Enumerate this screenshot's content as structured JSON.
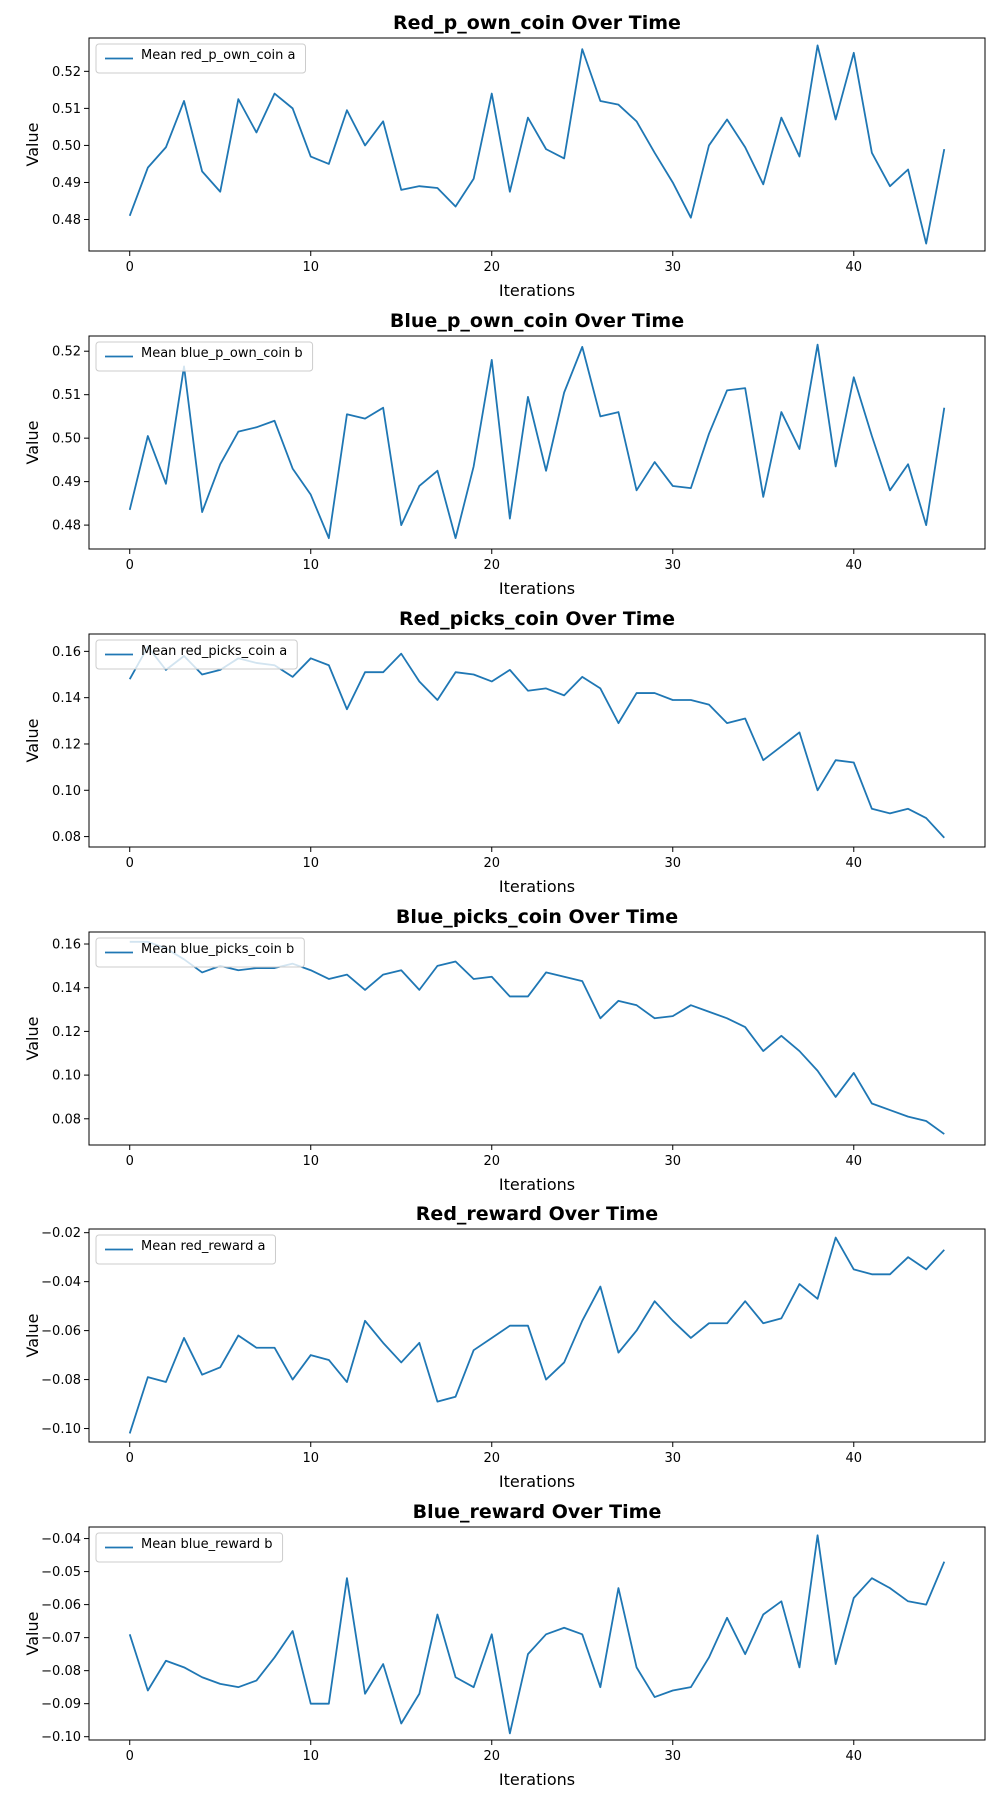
{
  "chart_data": [
    {
      "type": "line",
      "title": "Red_p_own_coin Over Time",
      "xlabel": "Iterations",
      "ylabel": "Value",
      "xlim": [
        -2.25,
        47.25
      ],
      "ylim": [
        0.4715,
        0.529
      ],
      "xticks": [
        0,
        10,
        20,
        30,
        40
      ],
      "xtick_labels": [
        "0",
        "10",
        "20",
        "30",
        "40"
      ],
      "yticks": [
        0.48,
        0.49,
        0.5,
        0.51,
        0.52
      ],
      "ytick_labels": [
        "0.48",
        "0.49",
        "0.50",
        "0.51",
        "0.52"
      ],
      "color": "#1f77b4",
      "legend_position": "upper left",
      "series": [
        {
          "name": "Mean red_p_own_coin a",
          "values": [
            0.481,
            0.494,
            0.4995,
            0.512,
            0.493,
            0.4875,
            0.5125,
            0.5035,
            0.514,
            0.51,
            0.497,
            0.495,
            0.5095,
            0.5,
            0.5065,
            0.488,
            0.489,
            0.4885,
            0.4835,
            0.491,
            0.514,
            0.4875,
            0.5075,
            0.499,
            0.4965,
            0.526,
            0.512,
            0.511,
            0.5065,
            0.498,
            0.49,
            0.4805,
            0.5,
            0.507,
            0.4995,
            0.4895,
            0.5075,
            0.497,
            0.527,
            0.507,
            0.525,
            0.498,
            0.489,
            0.4935,
            0.4735,
            0.499
          ]
        }
      ]
    },
    {
      "type": "line",
      "title": "Blue_p_own_coin Over Time",
      "xlabel": "Iterations",
      "ylabel": "Value",
      "xlim": [
        -2.25,
        47.25
      ],
      "ylim": [
        0.4745,
        0.5235
      ],
      "xticks": [
        0,
        10,
        20,
        30,
        40
      ],
      "xtick_labels": [
        "0",
        "10",
        "20",
        "30",
        "40"
      ],
      "yticks": [
        0.48,
        0.49,
        0.5,
        0.51,
        0.52
      ],
      "ytick_labels": [
        "0.48",
        "0.49",
        "0.50",
        "0.51",
        "0.52"
      ],
      "color": "#1f77b4",
      "legend_position": "upper left",
      "series": [
        {
          "name": "Mean blue_p_own_coin b",
          "values": [
            0.4835,
            0.5005,
            0.4895,
            0.5165,
            0.483,
            0.494,
            0.5015,
            0.5025,
            0.504,
            0.493,
            0.487,
            0.477,
            0.5055,
            0.5045,
            0.507,
            0.48,
            0.489,
            0.4925,
            0.477,
            0.4935,
            0.518,
            0.4815,
            0.5095,
            0.4925,
            0.5105,
            0.521,
            0.505,
            0.506,
            0.488,
            0.4945,
            0.489,
            0.4885,
            0.501,
            0.511,
            0.5115,
            0.4865,
            0.506,
            0.4975,
            0.5215,
            0.4935,
            0.514,
            0.5005,
            0.488,
            0.494,
            0.48,
            0.507
          ]
        }
      ]
    },
    {
      "type": "line",
      "title": "Red_picks_coin Over Time",
      "xlabel": "Iterations",
      "ylabel": "Value",
      "xlim": [
        -2.25,
        47.25
      ],
      "ylim": [
        0.0755,
        0.1675
      ],
      "xticks": [
        0,
        10,
        20,
        30,
        40
      ],
      "xtick_labels": [
        "0",
        "10",
        "20",
        "30",
        "40"
      ],
      "yticks": [
        0.08,
        0.1,
        0.12,
        0.14,
        0.16
      ],
      "ytick_labels": [
        "0.08",
        "0.10",
        "0.12",
        "0.14",
        "0.16"
      ],
      "color": "#1f77b4",
      "legend_position": "upper left",
      "series": [
        {
          "name": "Mean red_picks_coin a",
          "values": [
            0.148,
            0.162,
            0.152,
            0.158,
            0.15,
            0.152,
            0.157,
            0.155,
            0.154,
            0.149,
            0.157,
            0.154,
            0.135,
            0.151,
            0.151,
            0.159,
            0.147,
            0.139,
            0.151,
            0.15,
            0.147,
            0.152,
            0.143,
            0.144,
            0.141,
            0.149,
            0.144,
            0.129,
            0.142,
            0.142,
            0.139,
            0.139,
            0.137,
            0.129,
            0.131,
            0.113,
            0.119,
            0.125,
            0.1,
            0.113,
            0.112,
            0.092,
            0.09,
            0.092,
            0.088,
            0.0795
          ]
        }
      ]
    },
    {
      "type": "line",
      "title": "Blue_picks_coin Over Time",
      "xlabel": "Iterations",
      "ylabel": "Value",
      "xlim": [
        -2.25,
        47.25
      ],
      "ylim": [
        0.068,
        0.1655
      ],
      "xticks": [
        0,
        10,
        20,
        30,
        40
      ],
      "xtick_labels": [
        "0",
        "10",
        "20",
        "30",
        "40"
      ],
      "yticks": [
        0.08,
        0.1,
        0.12,
        0.14,
        0.16
      ],
      "ytick_labels": [
        "0.08",
        "0.10",
        "0.12",
        "0.14",
        "0.16"
      ],
      "color": "#1f77b4",
      "legend_position": "upper left",
      "series": [
        {
          "name": "Mean blue_picks_coin b",
          "values": [
            0.161,
            0.161,
            0.158,
            0.153,
            0.147,
            0.15,
            0.148,
            0.149,
            0.149,
            0.151,
            0.148,
            0.144,
            0.146,
            0.139,
            0.146,
            0.148,
            0.139,
            0.15,
            0.152,
            0.144,
            0.145,
            0.136,
            0.136,
            0.147,
            0.145,
            0.143,
            0.126,
            0.134,
            0.132,
            0.126,
            0.127,
            0.132,
            0.129,
            0.126,
            0.122,
            0.111,
            0.118,
            0.111,
            0.102,
            0.09,
            0.101,
            0.087,
            0.084,
            0.081,
            0.079,
            0.073
          ]
        }
      ]
    },
    {
      "type": "line",
      "title": "Red_reward Over Time",
      "xlabel": "Iterations",
      "ylabel": "Value",
      "xlim": [
        -2.25,
        47.25
      ],
      "ylim": [
        -0.1055,
        -0.0185
      ],
      "xticks": [
        0,
        10,
        20,
        30,
        40
      ],
      "xtick_labels": [
        "0",
        "10",
        "20",
        "30",
        "40"
      ],
      "yticks": [
        -0.1,
        -0.08,
        -0.06,
        -0.04,
        -0.02
      ],
      "ytick_labels": [
        "−0.10",
        "−0.08",
        "−0.06",
        "−0.04",
        "−0.02"
      ],
      "color": "#1f77b4",
      "legend_position": "upper left",
      "series": [
        {
          "name": "Mean red_reward a",
          "values": [
            -0.102,
            -0.079,
            -0.081,
            -0.063,
            -0.078,
            -0.075,
            -0.062,
            -0.067,
            -0.067,
            -0.08,
            -0.07,
            -0.072,
            -0.081,
            -0.056,
            -0.065,
            -0.073,
            -0.065,
            -0.089,
            -0.087,
            -0.068,
            -0.063,
            -0.058,
            -0.058,
            -0.08,
            -0.073,
            -0.056,
            -0.042,
            -0.069,
            -0.06,
            -0.048,
            -0.056,
            -0.063,
            -0.057,
            -0.057,
            -0.048,
            -0.057,
            -0.055,
            -0.041,
            -0.047,
            -0.022,
            -0.035,
            -0.037,
            -0.037,
            -0.03,
            -0.035,
            -0.027
          ]
        }
      ]
    },
    {
      "type": "line",
      "title": "Blue_reward Over Time",
      "xlabel": "Iterations",
      "ylabel": "Value",
      "xlim": [
        -2.25,
        47.25
      ],
      "ylim": [
        -0.101,
        -0.0365
      ],
      "xticks": [
        0,
        10,
        20,
        30,
        40
      ],
      "xtick_labels": [
        "0",
        "10",
        "20",
        "30",
        "40"
      ],
      "yticks": [
        -0.1,
        -0.09,
        -0.08,
        -0.07,
        -0.06,
        -0.05,
        -0.04
      ],
      "ytick_labels": [
        "−0.10",
        "−0.09",
        "−0.08",
        "−0.07",
        "−0.06",
        "−0.05",
        "−0.04"
      ],
      "color": "#1f77b4",
      "legend_position": "upper left",
      "series": [
        {
          "name": "Mean blue_reward b",
          "values": [
            -0.069,
            -0.086,
            -0.077,
            -0.079,
            -0.082,
            -0.084,
            -0.085,
            -0.083,
            -0.076,
            -0.068,
            -0.09,
            -0.09,
            -0.052,
            -0.087,
            -0.078,
            -0.096,
            -0.087,
            -0.063,
            -0.082,
            -0.085,
            -0.069,
            -0.099,
            -0.075,
            -0.069,
            -0.067,
            -0.069,
            -0.085,
            -0.055,
            -0.079,
            -0.088,
            -0.086,
            -0.085,
            -0.076,
            -0.064,
            -0.075,
            -0.063,
            -0.059,
            -0.079,
            -0.039,
            -0.078,
            -0.058,
            -0.052,
            -0.055,
            -0.059,
            -0.06,
            -0.047
          ]
        }
      ]
    }
  ]
}
